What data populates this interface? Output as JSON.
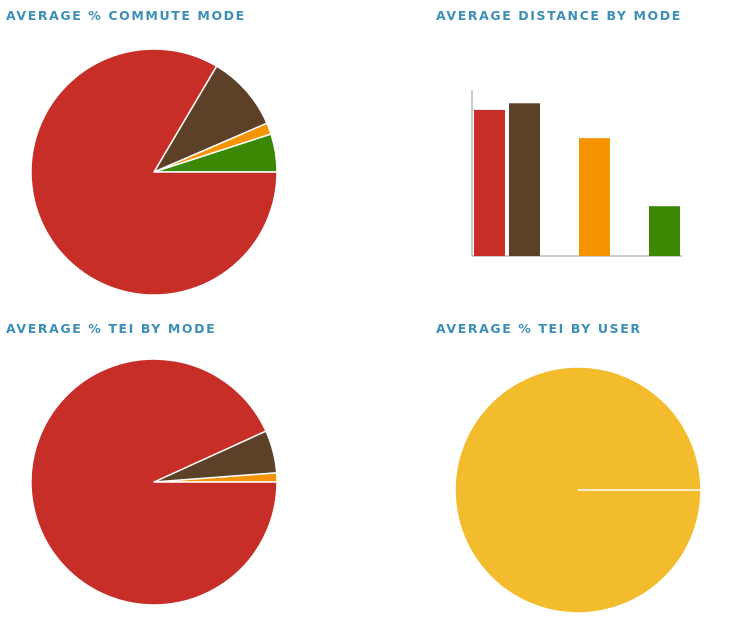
{
  "colors": {
    "title": "#3d8fb6",
    "red": "#c82e28",
    "brown": "#5c4128",
    "orange": "#f59300",
    "green": "#3a8804",
    "yellow": "#f3bc2d",
    "axis": "#999999"
  },
  "chart_data": [
    {
      "id": "commute",
      "type": "pie",
      "title": "AVERAGE % COMMUTE MODE",
      "slices": [
        {
          "value": 5.0,
          "color": "#3a8804"
        },
        {
          "value": 1.5,
          "color": "#f59300"
        },
        {
          "value": 10.0,
          "color": "#5c4128"
        },
        {
          "value": 83.5,
          "color": "#c82e28"
        }
      ]
    },
    {
      "id": "distance",
      "type": "bar",
      "title": "AVERAGE DISTANCE BY MODE",
      "ylim": [
        0,
        100
      ],
      "bars": [
        {
          "slot": 0,
          "value": 88,
          "color": "#c82e28"
        },
        {
          "slot": 1,
          "value": 92,
          "color": "#5c4128"
        },
        {
          "slot": 3,
          "value": 71,
          "color": "#f59300"
        },
        {
          "slot": 5,
          "value": 30,
          "color": "#3a8804"
        }
      ]
    },
    {
      "id": "tei-mode",
      "type": "pie",
      "title": "AVERAGE % TEI BY MODE",
      "slices": [
        {
          "value": 1.2,
          "color": "#f59300"
        },
        {
          "value": 5.6,
          "color": "#5c4128"
        },
        {
          "value": 93.2,
          "color": "#c82e28"
        }
      ]
    },
    {
      "id": "tei-user",
      "type": "pie",
      "title": "AVERAGE % TEI BY USER",
      "slices": [
        {
          "value": 100,
          "color": "#f3bc2d"
        }
      ]
    }
  ]
}
